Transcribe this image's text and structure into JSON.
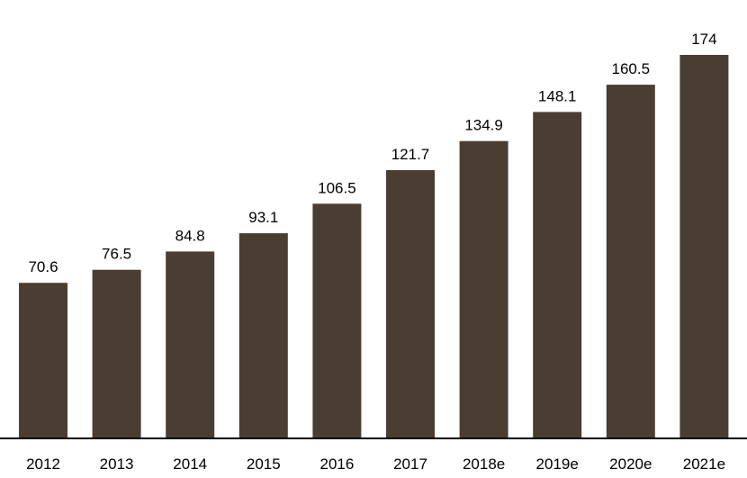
{
  "chart_data": {
    "type": "bar",
    "categories": [
      "2012",
      "2013",
      "2014",
      "2015",
      "2016",
      "2017",
      "2018e",
      "2019e",
      "2020e",
      "2021e"
    ],
    "values": [
      70.6,
      76.5,
      84.8,
      93.1,
      106.5,
      121.7,
      134.9,
      148.1,
      160.5,
      174
    ],
    "value_labels": [
      "70.6",
      "76.5",
      "84.8",
      "93.1",
      "106.5",
      "121.7",
      "134.9",
      "148.1",
      "160.5",
      "174"
    ],
    "title": "",
    "xlabel": "",
    "ylabel": "",
    "ylim": [
      0,
      174
    ],
    "grid": false,
    "legend": "none",
    "bar_color": "#4a3e33",
    "axis_color": "#000000"
  }
}
